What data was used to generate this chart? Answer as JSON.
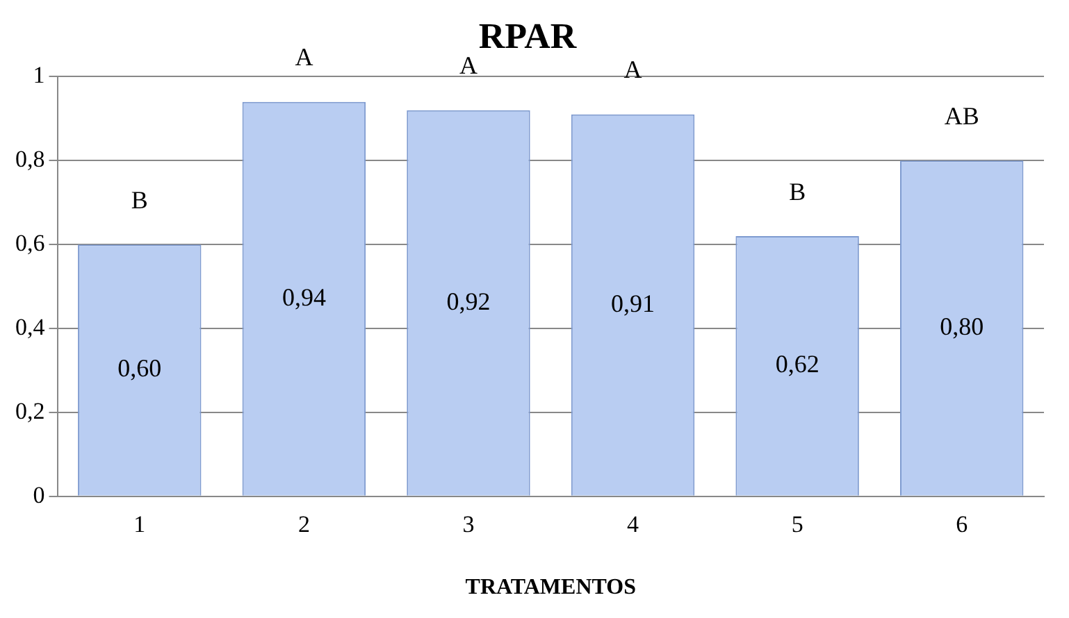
{
  "chart_data": {
    "type": "bar",
    "title": "RPAR",
    "xlabel": "TRATAMENTOS",
    "categories": [
      "1",
      "2",
      "3",
      "4",
      "5",
      "6"
    ],
    "values": [
      0.6,
      0.94,
      0.92,
      0.91,
      0.62,
      0.8
    ],
    "value_labels": [
      "0,60",
      "0,94",
      "0,92",
      "0,91",
      "0,62",
      "0,80"
    ],
    "color": "#b9cdf2",
    "ylim": [
      0,
      1
    ],
    "yticks": [
      {
        "value": 0,
        "label": "0"
      },
      {
        "value": 0.2,
        "label": "0,2"
      },
      {
        "value": 0.4,
        "label": "0,4"
      },
      {
        "value": 0.6,
        "label": "0,6"
      },
      {
        "value": 0.8,
        "label": "0,8"
      },
      {
        "value": 1,
        "label": "1"
      }
    ],
    "grid": "y",
    "annotations": [
      {
        "text": "B",
        "x": "1",
        "y": 0.6
      },
      {
        "text": "A",
        "x": "2",
        "y": 0.94
      },
      {
        "text": "A",
        "x": "3",
        "y": 0.92
      },
      {
        "text": "A",
        "x": "4",
        "y": 0.91
      },
      {
        "text": "B",
        "x": "5",
        "y": 0.62
      },
      {
        "text": "AB",
        "x": "6",
        "y": 0.8
      }
    ]
  }
}
